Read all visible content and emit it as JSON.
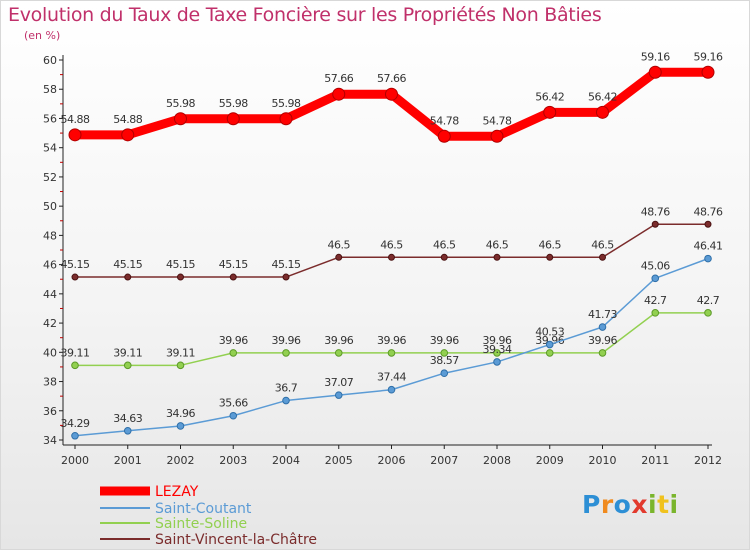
{
  "title": "Evolution du Taux de Taxe Foncière sur les Propriétés Non Bâties",
  "subtitle": "(en %)",
  "logo": [
    "P",
    "r",
    "o",
    "x",
    "i",
    "t",
    "i"
  ],
  "chart_data": {
    "type": "line",
    "title": "Evolution du Taux de Taxe Foncière sur les Propriétés Non Bâties",
    "ylabel": "(en %)",
    "x": [
      "2000",
      "2001",
      "2002",
      "2003",
      "2004",
      "2005",
      "2006",
      "2007",
      "2008",
      "2009",
      "2010",
      "2011",
      "2012"
    ],
    "ylim": [
      34,
      60
    ],
    "yticks": [
      34,
      36,
      38,
      40,
      42,
      44,
      46,
      48,
      50,
      52,
      54,
      56,
      58,
      60
    ],
    "grid": false,
    "legend": "bottom-left",
    "series": [
      {
        "name": "LEZAY",
        "color": "#ff0000",
        "values": [
          54.88,
          54.88,
          55.98,
          55.98,
          55.98,
          57.66,
          57.66,
          54.78,
          54.78,
          56.42,
          56.42,
          59.16,
          59.16
        ],
        "labels": [
          "54.88",
          "54.88",
          "55.98",
          "55.98",
          "55.98",
          "57.66",
          "57.66",
          "54.78",
          "54.78",
          "56.42",
          "56.42",
          "59.16",
          "59.16"
        ]
      },
      {
        "name": "Saint-Coutant",
        "color": "#5b9bd5",
        "values": [
          34.29,
          34.63,
          34.96,
          35.66,
          36.7,
          37.07,
          37.44,
          38.57,
          39.34,
          40.53,
          41.73,
          45.06,
          46.41
        ],
        "labels": [
          "34.29",
          "34.63",
          "34.96",
          "35.66",
          "36.7",
          "37.07",
          "37.44",
          "38.57",
          "39.34",
          "40.53",
          "41.73",
          "45.06",
          "46.41"
        ]
      },
      {
        "name": "Sainte-Soline",
        "color": "#92d050",
        "values": [
          39.11,
          39.11,
          39.11,
          39.96,
          39.96,
          39.96,
          39.96,
          39.96,
          39.96,
          39.96,
          39.96,
          42.7,
          42.7
        ],
        "labels": [
          "39.11",
          "39.11",
          "39.11",
          "39.96",
          "39.96",
          "39.96",
          "39.96",
          "39.96",
          "39.96",
          "39.96",
          "39.96",
          "42.7",
          "42.7"
        ]
      },
      {
        "name": "Saint-Vincent-la-Châtre",
        "color": "#7b2c2c",
        "values": [
          45.15,
          45.15,
          45.15,
          45.15,
          45.15,
          46.5,
          46.5,
          46.5,
          46.5,
          46.5,
          46.5,
          48.76,
          48.76
        ],
        "labels": [
          "45.15",
          "45.15",
          "45.15",
          "45.15",
          "45.15",
          "46.5",
          "46.5",
          "46.5",
          "46.5",
          "46.5",
          "46.5",
          "48.76",
          "48.76"
        ]
      }
    ]
  }
}
